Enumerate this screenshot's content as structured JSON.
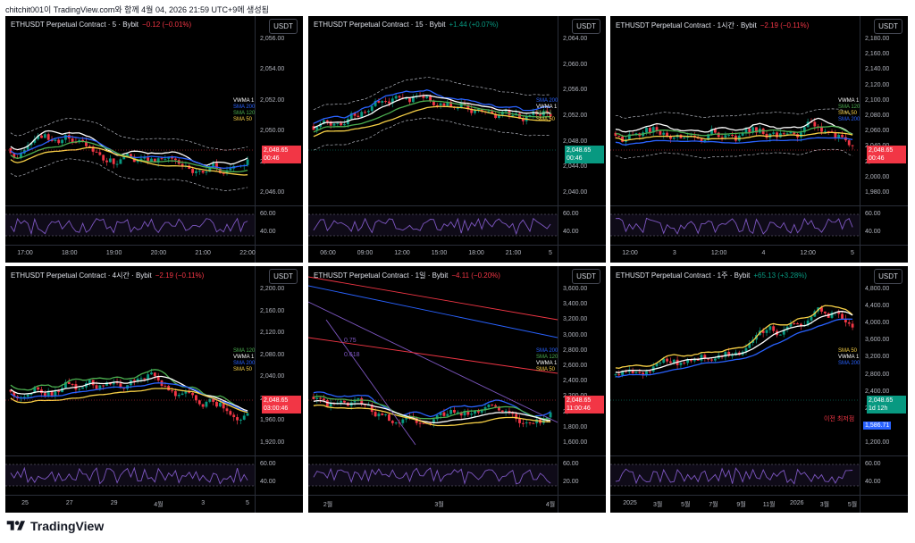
{
  "header": {
    "text": "chitchit001이 TradingView.com와 함께 4월 04, 2026 21:59 UTC+9에 생성됨"
  },
  "footer": {
    "brand": "TradingView"
  },
  "panels": [
    {
      "title": "ETHUSDT Perpetual Contract · 5 · Bybit",
      "change": "−0.12 (−0.01%)",
      "change_dir": "down",
      "currency": "USDT",
      "price": "2,048.65",
      "countdown": "00:46",
      "price_color": "#f23645",
      "y_labels": [
        "2,056.00",
        "2,054.00",
        "2,052.00",
        "2,050.00",
        "2,048.00",
        "2,046.00"
      ],
      "x_labels": [
        "17:00",
        "18:00",
        "19:00",
        "20:00",
        "21:00",
        "22:00"
      ],
      "rsi_labels": [
        "60.00",
        "40.00"
      ],
      "indicators": [
        {
          "label": "VWMA 1",
          "color": "#ffffff"
        },
        {
          "label": "SMA 200",
          "color": "#2962ff"
        },
        {
          "label": "SMA 120",
          "color": "#4caf50"
        },
        {
          "label": "SMA 50",
          "color": "#f7d046"
        }
      ],
      "extras": []
    },
    {
      "title": "ETHUSDT Perpetual Contract · 15 · Bybit",
      "change": "+1.44 (+0.07%)",
      "change_dir": "up",
      "currency": "USDT",
      "price": "2,048.65",
      "countdown": "00:46",
      "price_color": "#089981",
      "y_labels": [
        "2,064.00",
        "2,060.00",
        "2,056.00",
        "2,052.00",
        "2,048.00",
        "2,044.00",
        "2,040.00"
      ],
      "x_labels": [
        "06:00",
        "09:00",
        "12:00",
        "15:00",
        "18:00",
        "21:00",
        "5"
      ],
      "rsi_labels": [
        "60.00",
        "40.00"
      ],
      "indicators": [
        {
          "label": "SMA 200",
          "color": "#2962ff"
        },
        {
          "label": "VWMA 1",
          "color": "#ffffff"
        },
        {
          "label": "SMA 1",
          "color": "#4caf50"
        },
        {
          "label": "SMA 50",
          "color": "#f7d046"
        }
      ],
      "extras": []
    },
    {
      "title": "ETHUSDT Perpetual Contract · 1시간 · Bybit",
      "change": "−2.19 (−0.11%)",
      "change_dir": "down",
      "currency": "USDT",
      "price": "2,048.65",
      "countdown": "00:46",
      "price_color": "#f23645",
      "y_labels": [
        "2,180.00",
        "2,160.00",
        "2,140.00",
        "2,120.00",
        "2,100.00",
        "2,080.00",
        "2,060.00",
        "2,040.00",
        "2,020.00",
        "2,000.00",
        "1,980.00"
      ],
      "x_labels": [
        "12:00",
        "3",
        "12:00",
        "4",
        "12:00",
        "5"
      ],
      "rsi_labels": [
        "60.00",
        "40.00"
      ],
      "indicators": [
        {
          "label": "VWMA 1",
          "color": "#ffffff"
        },
        {
          "label": "SMA 120",
          "color": "#4caf50"
        },
        {
          "label": "SMA 50",
          "color": "#f7d046"
        },
        {
          "label": "SMA 200",
          "color": "#2962ff"
        }
      ],
      "extras": []
    },
    {
      "title": "ETHUSDT Perpetual Contract · 4시간 · Bybit",
      "change": "−2.19 (−0.11%)",
      "change_dir": "down",
      "currency": "USDT",
      "price": "2,048.65",
      "countdown": "03:00:46",
      "price_color": "#f23645",
      "y_labels": [
        "2,200.00",
        "2,160.00",
        "2,120.00",
        "2,080.00",
        "2,040.00",
        "2,000.00",
        "1,960.00",
        "1,920.00"
      ],
      "x_labels": [
        "25",
        "27",
        "29",
        "4월",
        "3",
        "5"
      ],
      "rsi_labels": [
        "60.00",
        "40.00"
      ],
      "indicators": [
        {
          "label": "SMA 120",
          "color": "#4caf50"
        },
        {
          "label": "VWMA 1",
          "color": "#ffffff"
        },
        {
          "label": "SMA 200",
          "color": "#2962ff"
        },
        {
          "label": "SMA 50",
          "color": "#f7d046"
        }
      ],
      "extras": []
    },
    {
      "title": "ETHUSDT Perpetual Contract · 1일 · Bybit",
      "change": "−4.11 (−0.20%)",
      "change_dir": "down",
      "currency": "USDT",
      "price": "2,048.65",
      "countdown": "11:00:46",
      "price_color": "#f23645",
      "y_labels": [
        "3,600.00",
        "3,400.00",
        "3,200.00",
        "3,000.00",
        "2,800.00",
        "2,600.00",
        "2,400.00",
        "2,200.00",
        "2,000.00",
        "1,800.00",
        "1,600.00"
      ],
      "x_labels": [
        "2월",
        "3월",
        "4월"
      ],
      "rsi_labels": [
        "60.00",
        "20.00"
      ],
      "indicators": [
        {
          "label": "SMA 200",
          "color": "#2962ff"
        },
        {
          "label": "SMA 120",
          "color": "#4caf50"
        },
        {
          "label": "VWMA 1",
          "color": "#ffffff"
        },
        {
          "label": "SMA 50",
          "color": "#f7d046"
        }
      ],
      "extras": [
        {
          "text": "0.618",
          "color": "#7e57c2"
        },
        {
          "text": "0.75",
          "color": "#7e57c2"
        }
      ]
    },
    {
      "title": "ETHUSDT Perpetual Contract · 1주 · Bybit",
      "change": "+65.13 (+3.28%)",
      "change_dir": "up",
      "currency": "USDT",
      "price": "2,048.65",
      "countdown": "1d 12h",
      "price_color": "#089981",
      "y_labels": [
        "4,800.00",
        "4,400.00",
        "4,000.00",
        "3,600.00",
        "3,200.00",
        "2,800.00",
        "2,400.00",
        "2,000.00",
        "1,600.00",
        "1,200.00"
      ],
      "x_labels": [
        "2025",
        "3월",
        "5월",
        "7월",
        "9월",
        "11월",
        "2026",
        "3월",
        "5월"
      ],
      "rsi_labels": [
        "60.00",
        "40.00"
      ],
      "indicators": [
        {
          "label": "SMA 50",
          "color": "#f7d046"
        },
        {
          "label": "VWMA 1",
          "color": "#ffffff"
        },
        {
          "label": "SMA 200",
          "color": "#2962ff"
        }
      ],
      "extras": [
        {
          "text": "이전 최저점",
          "color": "#f23645"
        },
        {
          "text": "1,586.71",
          "color": "#ffffff"
        }
      ]
    }
  ]
}
